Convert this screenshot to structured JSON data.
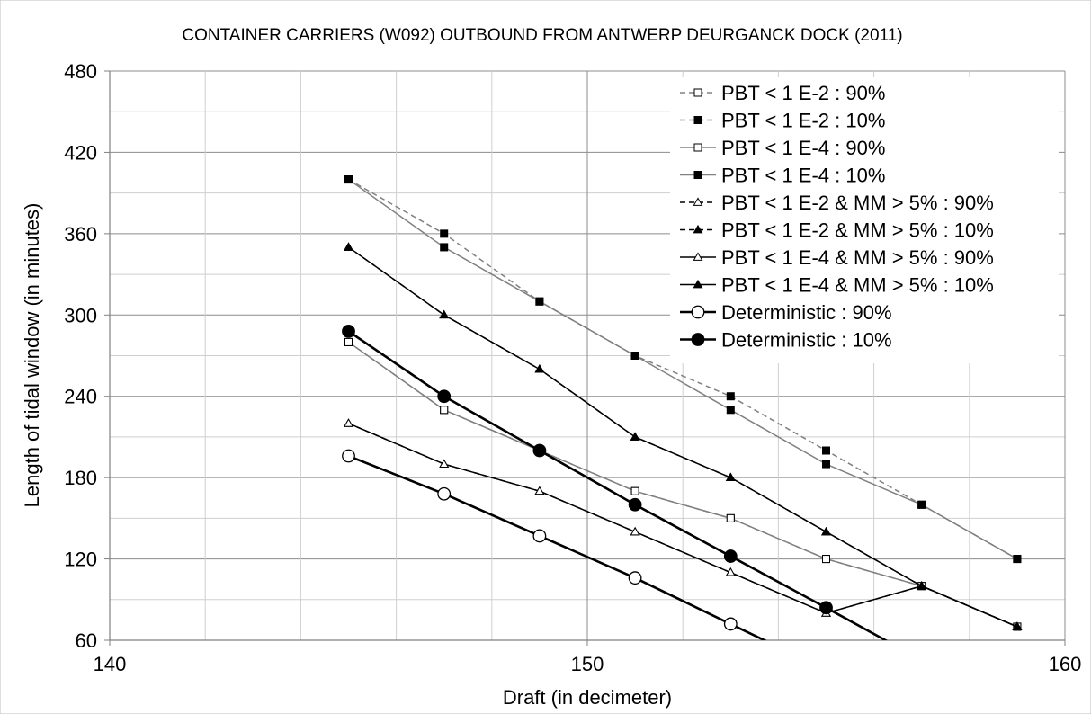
{
  "chart_data": {
    "type": "line",
    "title": "CONTAINER CARRIERS (W092) OUTBOUND FROM ANTWERP DEURGANCK DOCK (2011)",
    "xlabel": "Draft (in decimeter)",
    "ylabel": "Length of tidal window (in minutes)",
    "xlim": [
      140,
      160
    ],
    "ylim": [
      60,
      480
    ],
    "x_ticks": [
      140,
      150,
      160
    ],
    "y_ticks": [
      60,
      120,
      180,
      240,
      300,
      360,
      420,
      480
    ],
    "x_tick_labels": [
      "140",
      "150",
      "160"
    ],
    "y_tick_labels": [
      "60",
      "120",
      "180",
      "240",
      "300",
      "360",
      "420",
      "480"
    ],
    "grid": true,
    "legend_position": "top-right",
    "series": [
      {
        "name": "PBT < 1 E-2 : 90%",
        "color": "#808080",
        "dash": true,
        "marker": "square-open",
        "x": [
          145,
          147,
          149,
          151,
          153,
          155,
          157,
          159
        ],
        "y": [
          280,
          230,
          200,
          170,
          150,
          120,
          100,
          70
        ]
      },
      {
        "name": "PBT < 1 E-2 : 10%",
        "color": "#808080",
        "dash": true,
        "marker": "square-filled",
        "x": [
          145,
          147,
          149,
          151,
          153,
          155,
          157,
          159
        ],
        "y": [
          400,
          360,
          310,
          270,
          240,
          200,
          160,
          120
        ]
      },
      {
        "name": "PBT < 1 E-4 : 90%",
        "color": "#808080",
        "dash": false,
        "marker": "square-open",
        "x": [
          145,
          147,
          149,
          151,
          153,
          155,
          157,
          159
        ],
        "y": [
          280,
          230,
          200,
          170,
          150,
          120,
          100,
          70
        ]
      },
      {
        "name": "PBT < 1 E-4 : 10%",
        "color": "#808080",
        "dash": false,
        "marker": "square-filled",
        "x": [
          145,
          147,
          149,
          151,
          153,
          155,
          157,
          159
        ],
        "y": [
          400,
          350,
          310,
          270,
          230,
          190,
          160,
          120
        ]
      },
      {
        "name": "PBT < 1 E-2 & MM > 5% : 90%",
        "color": "#000000",
        "dash": true,
        "marker": "triangle-open",
        "x": [
          145,
          147,
          149,
          151,
          153,
          155,
          157,
          159
        ],
        "y": [
          220,
          190,
          170,
          140,
          110,
          80,
          100,
          70
        ]
      },
      {
        "name": "PBT < 1 E-2 & MM > 5% : 10%",
        "color": "#000000",
        "dash": true,
        "marker": "triangle-filled",
        "x": [
          145,
          147,
          149,
          151,
          153,
          155,
          157,
          159
        ],
        "y": [
          350,
          300,
          260,
          210,
          180,
          140,
          100,
          70
        ]
      },
      {
        "name": "PBT < 1 E-4 & MM > 5% : 90%",
        "color": "#000000",
        "dash": false,
        "marker": "triangle-open",
        "x": [
          145,
          147,
          149,
          151,
          153,
          155,
          157,
          159
        ],
        "y": [
          220,
          190,
          170,
          140,
          110,
          80,
          100,
          70
        ]
      },
      {
        "name": "PBT < 1 E-4 & MM > 5% : 10%",
        "color": "#000000",
        "dash": false,
        "marker": "triangle-filled",
        "x": [
          145,
          147,
          149,
          151,
          153,
          155,
          157,
          159
        ],
        "y": [
          350,
          300,
          260,
          210,
          180,
          140,
          100,
          70
        ]
      },
      {
        "name": "Deterministic : 90%",
        "color": "#000000",
        "dash": false,
        "bold": true,
        "marker": "circle-open",
        "x": [
          145,
          147,
          149,
          151,
          153,
          154
        ],
        "y": [
          196,
          168,
          137,
          106,
          72,
          55
        ]
      },
      {
        "name": "Deterministic : 10%",
        "color": "#000000",
        "dash": false,
        "bold": true,
        "marker": "circle-filled",
        "x": [
          145,
          147,
          149,
          151,
          153,
          155,
          156.5
        ],
        "y": [
          288,
          240,
          200,
          160,
          122,
          84,
          55
        ]
      }
    ]
  }
}
